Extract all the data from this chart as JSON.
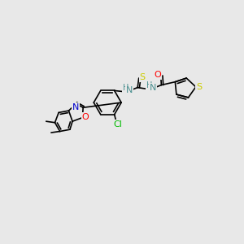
{
  "background_color": "#e8e8e8",
  "bond_color": "#000000",
  "figsize": [
    3.0,
    3.0
  ],
  "dpi": 100,
  "colors": {
    "N": "#4a9090",
    "O": "#ff0000",
    "S": "#cccc00",
    "Cl": "#00bb00",
    "N_blue": "#0000cc"
  }
}
